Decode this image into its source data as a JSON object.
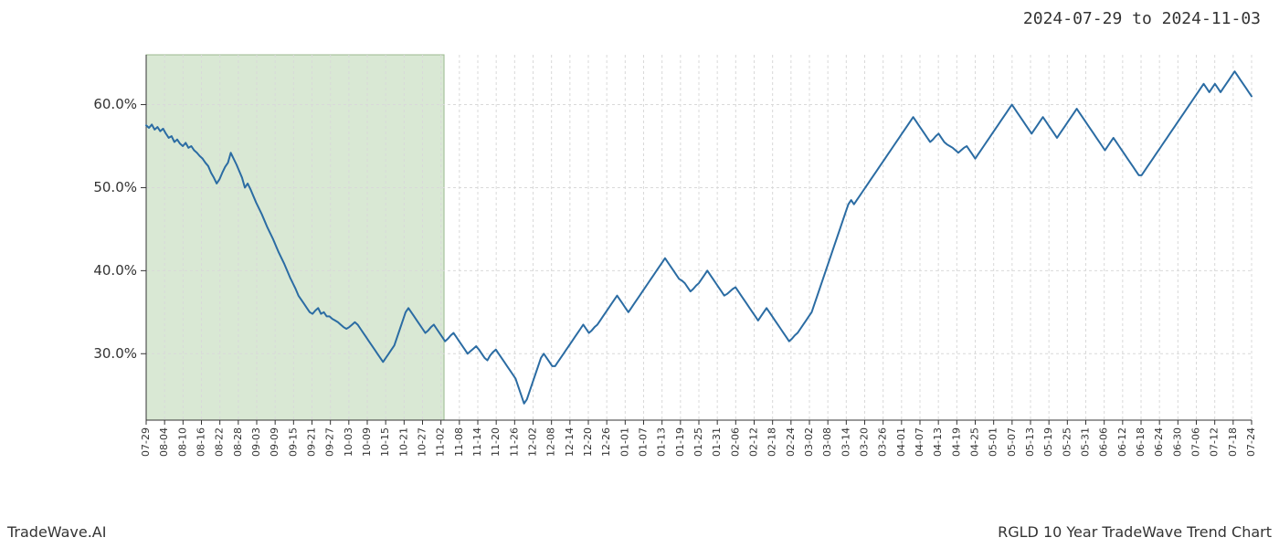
{
  "header": {
    "date_range": "2024-07-29 to 2024-11-03",
    "date_range_fontsize": 18
  },
  "footer": {
    "left": "TradeWave.AI",
    "right": "RGLD 10 Year TradeWave Trend Chart",
    "fontsize": 16
  },
  "chart": {
    "type": "line",
    "background_color": "#ffffff",
    "line_color": "#2b6ca3",
    "line_width": 2.0,
    "highlight_band": {
      "fill": "#d9e8d4",
      "stroke": "#9ab98e",
      "start_x": "07-29",
      "end_x": "11-03"
    },
    "grid": {
      "color": "#d9d9d9",
      "dash": "3,3",
      "width": 1
    },
    "axis_color": "#333333",
    "ylim": [
      22,
      66
    ],
    "ytick_values": [
      30,
      40,
      50,
      60
    ],
    "ytick_labels": [
      "30.0%",
      "40.0%",
      "50.0%",
      "60.0%"
    ],
    "xtick_labels": [
      "07-29",
      "08-04",
      "08-10",
      "08-16",
      "08-22",
      "08-28",
      "09-03",
      "09-09",
      "09-15",
      "09-21",
      "09-27",
      "10-03",
      "10-09",
      "10-15",
      "10-21",
      "10-27",
      "11-02",
      "11-08",
      "11-14",
      "11-20",
      "11-26",
      "12-02",
      "12-08",
      "12-14",
      "12-20",
      "12-26",
      "01-01",
      "01-07",
      "01-13",
      "01-19",
      "01-25",
      "01-31",
      "02-06",
      "02-12",
      "02-18",
      "02-24",
      "03-02",
      "03-08",
      "03-14",
      "03-20",
      "03-26",
      "04-01",
      "04-07",
      "04-13",
      "04-19",
      "04-25",
      "05-01",
      "05-07",
      "05-13",
      "05-19",
      "05-25",
      "05-31",
      "06-06",
      "06-12",
      "06-18",
      "06-24",
      "06-30",
      "07-06",
      "07-12",
      "07-18",
      "07-24"
    ],
    "series": {
      "values": [
        57.5,
        57.2,
        57.6,
        57.0,
        57.3,
        56.8,
        57.1,
        56.5,
        56.0,
        56.2,
        55.5,
        55.8,
        55.3,
        55.0,
        55.4,
        54.8,
        55.0,
        54.5,
        54.2,
        53.8,
        53.5,
        53.0,
        52.6,
        51.8,
        51.2,
        50.5,
        51.0,
        51.8,
        52.5,
        53.0,
        54.2,
        53.5,
        52.8,
        52.0,
        51.2,
        50.0,
        50.5,
        49.8,
        49.0,
        48.2,
        47.5,
        46.8,
        46.0,
        45.2,
        44.5,
        43.8,
        43.0,
        42.2,
        41.5,
        40.8,
        40.0,
        39.2,
        38.5,
        37.8,
        37.0,
        36.5,
        36.0,
        35.5,
        35.0,
        34.8,
        35.2,
        35.5,
        34.8,
        35.0,
        34.5,
        34.5,
        34.2,
        34.0,
        33.8,
        33.5,
        33.2,
        33.0,
        33.2,
        33.5,
        33.8,
        33.5,
        33.0,
        32.5,
        32.0,
        31.5,
        31.0,
        30.5,
        30.0,
        29.5,
        29.0,
        29.5,
        30.0,
        30.5,
        31.0,
        32.0,
        33.0,
        34.0,
        35.0,
        35.5,
        35.0,
        34.5,
        34.0,
        33.5,
        33.0,
        32.5,
        32.8,
        33.2,
        33.5,
        33.0,
        32.5,
        32.0,
        31.5,
        31.8,
        32.2,
        32.5,
        32.0,
        31.5,
        31.0,
        30.5,
        30.0,
        30.3,
        30.6,
        30.9,
        30.5,
        30.0,
        29.5,
        29.2,
        29.8,
        30.2,
        30.5,
        30.0,
        29.5,
        29.0,
        28.5,
        28.0,
        27.5,
        27.0,
        26.0,
        25.0,
        24.0,
        24.5,
        25.5,
        26.5,
        27.5,
        28.5,
        29.5,
        30.0,
        29.5,
        29.0,
        28.5,
        28.5,
        29.0,
        29.5,
        30.0,
        30.5,
        31.0,
        31.5,
        32.0,
        32.5,
        33.0,
        33.5,
        33.0,
        32.5,
        32.8,
        33.2,
        33.5,
        34.0,
        34.5,
        35.0,
        35.5,
        36.0,
        36.5,
        37.0,
        36.5,
        36.0,
        35.5,
        35.0,
        35.5,
        36.0,
        36.5,
        37.0,
        37.5,
        38.0,
        38.5,
        39.0,
        39.5,
        40.0,
        40.5,
        41.0,
        41.5,
        41.0,
        40.5,
        40.0,
        39.5,
        39.0,
        38.8,
        38.5,
        38.0,
        37.5,
        37.8,
        38.2,
        38.5,
        39.0,
        39.5,
        40.0,
        39.5,
        39.0,
        38.5,
        38.0,
        37.5,
        37.0,
        37.2,
        37.5,
        37.8,
        38.0,
        37.5,
        37.0,
        36.5,
        36.0,
        35.5,
        35.0,
        34.5,
        34.0,
        34.5,
        35.0,
        35.5,
        35.0,
        34.5,
        34.0,
        33.5,
        33.0,
        32.5,
        32.0,
        31.5,
        31.8,
        32.2,
        32.5,
        33.0,
        33.5,
        34.0,
        34.5,
        35.0,
        36.0,
        37.0,
        38.0,
        39.0,
        40.0,
        41.0,
        42.0,
        43.0,
        44.0,
        45.0,
        46.0,
        47.0,
        48.0,
        48.5,
        48.0,
        48.5,
        49.0,
        49.5,
        50.0,
        50.5,
        51.0,
        51.5,
        52.0,
        52.5,
        53.0,
        53.5,
        54.0,
        54.5,
        55.0,
        55.5,
        56.0,
        56.5,
        57.0,
        57.5,
        58.0,
        58.5,
        58.0,
        57.5,
        57.0,
        56.5,
        56.0,
        55.5,
        55.8,
        56.2,
        56.5,
        56.0,
        55.5,
        55.2,
        55.0,
        54.8,
        54.5,
        54.2,
        54.5,
        54.8,
        55.0,
        54.5,
        54.0,
        53.5,
        54.0,
        54.5,
        55.0,
        55.5,
        56.0,
        56.5,
        57.0,
        57.5,
        58.0,
        58.5,
        59.0,
        59.5,
        60.0,
        59.5,
        59.0,
        58.5,
        58.0,
        57.5,
        57.0,
        56.5,
        57.0,
        57.5,
        58.0,
        58.5,
        58.0,
        57.5,
        57.0,
        56.5,
        56.0,
        56.5,
        57.0,
        57.5,
        58.0,
        58.5,
        59.0,
        59.5,
        59.0,
        58.5,
        58.0,
        57.5,
        57.0,
        56.5,
        56.0,
        55.5,
        55.0,
        54.5,
        55.0,
        55.5,
        56.0,
        55.5,
        55.0,
        54.5,
        54.0,
        53.5,
        53.0,
        52.5,
        52.0,
        51.5,
        51.5,
        52.0,
        52.5,
        53.0,
        53.5,
        54.0,
        54.5,
        55.0,
        55.5,
        56.0,
        56.5,
        57.0,
        57.5,
        58.0,
        58.5,
        59.0,
        59.5,
        60.0,
        60.5,
        61.0,
        61.5,
        62.0,
        62.5,
        62.0,
        61.5,
        62.0,
        62.5,
        62.0,
        61.5,
        62.0,
        62.5,
        63.0,
        63.5,
        64.0,
        63.5,
        63.0,
        62.5,
        62.0,
        61.5,
        61.0
      ]
    }
  }
}
